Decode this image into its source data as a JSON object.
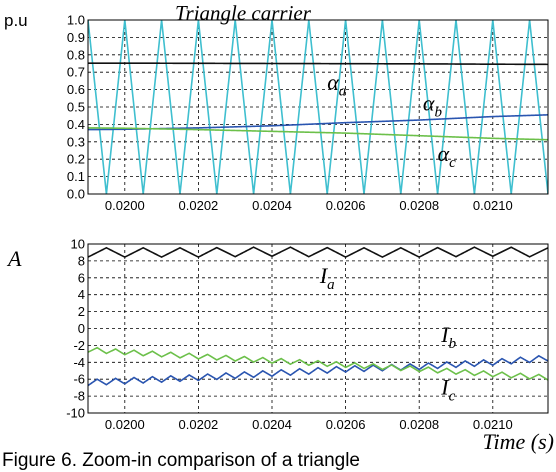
{
  "caption": "Figure 6. Zoom-in comparison of a triangle",
  "colors": {
    "black": "#111111",
    "cyan": "#3fbfcf",
    "blue": "#2a55b0",
    "green": "#6cc04a"
  },
  "chart_data": [
    {
      "id": "top",
      "type": "line",
      "title": "Triangle carrier",
      "ylabel": "p.u",
      "xlabel": "",
      "xlim": [
        0.0199,
        0.02115
      ],
      "ylim": [
        0,
        1
      ],
      "x_ticks": [
        "0.0200",
        "0.0202",
        "0.0204",
        "0.0206",
        "0.0208",
        "0.0210"
      ],
      "y_ticks": [
        "0.0",
        "0.1",
        "0.2",
        "0.3",
        "0.4",
        "0.5",
        "0.6",
        "0.7",
        "0.8",
        "0.9",
        "1.0"
      ],
      "grid": true,
      "carrier": {
        "name": "Triangle carrier",
        "color": "#3fbfcf",
        "period": 0.0001,
        "first_peak": 0.0199,
        "min": 0,
        "max": 1
      },
      "series": [
        {
          "name": "α",
          "sub": "a",
          "color": "#111111",
          "x": [
            0.0199,
            0.02,
            0.0202,
            0.0204,
            0.0206,
            0.0208,
            0.021,
            0.02115
          ],
          "y": [
            0.752,
            0.752,
            0.751,
            0.75,
            0.749,
            0.748,
            0.746,
            0.745
          ]
        },
        {
          "name": "α",
          "sub": "b",
          "color": "#2a55b0",
          "x": [
            0.0199,
            0.02,
            0.0202,
            0.0204,
            0.0206,
            0.0208,
            0.021,
            0.02115
          ],
          "y": [
            0.37,
            0.372,
            0.38,
            0.392,
            0.41,
            0.425,
            0.445,
            0.455
          ]
        },
        {
          "name": "α",
          "sub": "c",
          "color": "#6cc04a",
          "x": [
            0.0199,
            0.02,
            0.0202,
            0.0204,
            0.0206,
            0.0208,
            0.021,
            0.02115
          ],
          "y": [
            0.38,
            0.378,
            0.37,
            0.36,
            0.35,
            0.335,
            0.32,
            0.312
          ]
        }
      ],
      "labels": [
        {
          "text": "α",
          "sub": "a",
          "x": 0.02055,
          "y": 0.6
        },
        {
          "text": "α",
          "sub": "b",
          "x": 0.02081,
          "y": 0.48
        },
        {
          "text": "α",
          "sub": "c",
          "x": 0.02085,
          "y": 0.19
        }
      ]
    },
    {
      "id": "bottom",
      "type": "line",
      "title": "",
      "ylabel": "A",
      "xlabel": "Time (s)",
      "xlim": [
        0.0199,
        0.02115
      ],
      "ylim": [
        -10,
        10
      ],
      "x_ticks": [
        "0.0200",
        "0.0202",
        "0.0204",
        "0.0206",
        "0.0208",
        "0.0210"
      ],
      "y_ticks": [
        "-10",
        "-8",
        "-6",
        "-4",
        "-2",
        "0",
        "2",
        "4",
        "6",
        "8",
        "10"
      ],
      "grid": true,
      "series": [
        {
          "name": "I",
          "sub": "a",
          "color": "#111111",
          "ripple": 0.55,
          "ripple_period": 0.0001,
          "x": [
            0.0199,
            0.02,
            0.0202,
            0.0204,
            0.0206,
            0.0208,
            0.021,
            0.02115
          ],
          "y": [
            9.0,
            9.0,
            9.0,
            9.1,
            9.0,
            9.0,
            9.1,
            9.0
          ]
        },
        {
          "name": "I",
          "sub": "b",
          "color": "#2a55b0",
          "ripple": 0.35,
          "ripple_period": 5e-05,
          "x": [
            0.0199,
            0.02,
            0.0202,
            0.0204,
            0.0206,
            0.0208,
            0.021,
            0.02115
          ],
          "y": [
            -6.4,
            -6.2,
            -5.8,
            -5.3,
            -4.8,
            -4.5,
            -4.0,
            -3.5
          ]
        },
        {
          "name": "I",
          "sub": "c",
          "color": "#6cc04a",
          "ripple": 0.3,
          "ripple_period": 5e-05,
          "x": [
            0.0199,
            0.02,
            0.0202,
            0.0204,
            0.0206,
            0.0208,
            0.021,
            0.02115
          ],
          "y": [
            -2.5,
            -2.8,
            -3.3,
            -3.8,
            -4.3,
            -4.8,
            -5.4,
            -5.8
          ]
        }
      ],
      "labels": [
        {
          "text": "I",
          "sub": "a",
          "x": 0.02053,
          "y": 5.4
        },
        {
          "text": "I",
          "sub": "b",
          "x": 0.02086,
          "y": -1.6
        },
        {
          "text": "I",
          "sub": "c",
          "x": 0.02086,
          "y": -7.8
        }
      ]
    }
  ]
}
